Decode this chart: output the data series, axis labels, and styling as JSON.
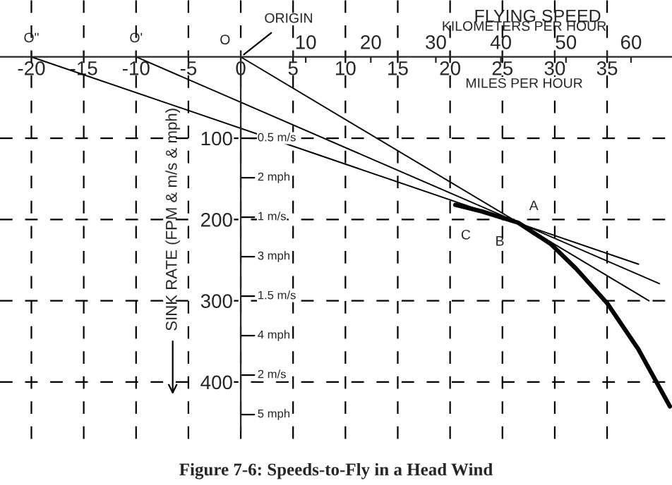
{
  "chart_data": {
    "type": "line",
    "title": "Figure 7-6: Speeds-to-Fly in a Head Wind",
    "xlabel": "MILES PER HOUR",
    "x2label": "KILOMETERS PER HOUR",
    "ylabel": "SINK RATE (FPM & m/s & mph)",
    "series": [
      {
        "color": "#000000",
        "x": [
          20.5,
          23,
          26.5,
          29.6,
          32,
          35,
          38,
          41
        ],
        "values": [
          182,
          190,
          204,
          230,
          260,
          303,
          360,
          430
        ]
      },
      {
        "color": "#000000",
        "x": [
          0,
          39
        ],
        "values": [
          0,
          300
        ]
      },
      {
        "color": "#000000",
        "x": [
          -10,
          40
        ],
        "values": [
          0,
          279
        ]
      },
      {
        "color": "#000000",
        "x": [
          -20,
          38
        ],
        "values": [
          0,
          255
        ]
      }
    ],
    "xlim": [
      -23,
      41.2
    ],
    "xticks": [
      -20,
      -15,
      -10,
      -5,
      0,
      5,
      10,
      15,
      20,
      25,
      30,
      35
    ],
    "x2lim": [
      -37,
      66.3
    ],
    "x2ticks": [
      10,
      20,
      30,
      40,
      50,
      60
    ],
    "ylim": [
      470,
      -70
    ],
    "yticks": [
      100,
      200,
      300,
      400
    ],
    "annotations": [
      "0.5 m/s",
      "2 mph",
      "1 m/s",
      "3 mph",
      "1.5 m/s",
      "4 mph",
      "2 m/s",
      "5 mph",
      {
        "text": "ORIGIN",
        "x": 0,
        "y": 0
      },
      {
        "text": "O",
        "x": 0,
        "y": 0
      },
      {
        "text": "O'",
        "x": -10,
        "y": 0
      },
      {
        "text": "O\"",
        "x": -20,
        "y": 0
      },
      {
        "text": "A",
        "x": 26.5,
        "y": 204
      },
      {
        "text": "B",
        "x": 25.5,
        "y": 202
      },
      {
        "text": "C",
        "x": 24.5,
        "y": 199
      },
      "FLYING SPEED"
    ],
    "grid": true,
    "line_style": "solid",
    "marker": "none",
    "legend": false
  }
}
